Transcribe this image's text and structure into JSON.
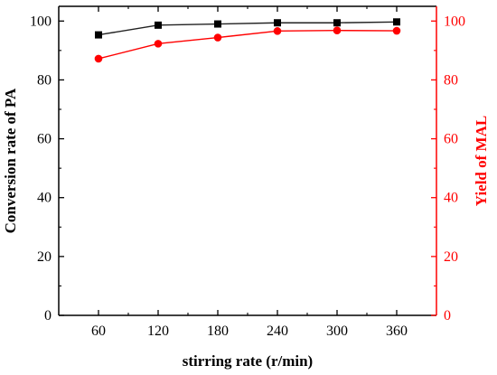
{
  "chart_data": {
    "type": "line",
    "x": [
      60,
      120,
      180,
      240,
      300,
      360
    ],
    "xlabel": "stirring rate (r/min)",
    "xticks": [
      "60",
      "120",
      "180",
      "240",
      "300",
      "360"
    ],
    "xlim": [
      20,
      400
    ],
    "ylabel_left": "Conversion rate of PA",
    "ylabel_right": "Yield of MAL",
    "ylim": [
      0,
      105
    ],
    "yticks_left": [
      "0",
      "20",
      "40",
      "60",
      "80",
      "100"
    ],
    "yticks_right": [
      "0",
      "20",
      "40",
      "60",
      "80",
      "100"
    ],
    "grid": false,
    "series": [
      {
        "axis": "left",
        "marker": "square",
        "color": "#222222",
        "marker_color": "#000000",
        "values": [
          95.3,
          98.6,
          99.0,
          99.4,
          99.4,
          99.7
        ]
      },
      {
        "axis": "right",
        "marker": "circle",
        "color": "#ff0000",
        "marker_color": "#ff0000",
        "values": [
          87.2,
          92.3,
          94.4,
          96.6,
          96.8,
          96.7
        ]
      }
    ],
    "colors": {
      "left_axis": "#000000",
      "right_axis": "#ff0000"
    }
  }
}
